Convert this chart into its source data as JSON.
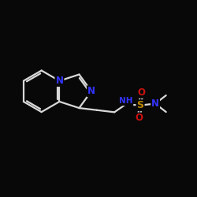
{
  "background_color": "#080808",
  "bond_color": "#d8d8d8",
  "bond_width": 1.6,
  "atom_colors": {
    "N": "#3333ff",
    "S": "#bb8800",
    "O": "#cc1111",
    "C": "#d8d8d8",
    "H": "#d8d8d8"
  },
  "xlim": [
    -4.0,
    5.5
  ],
  "ylim": [
    -3.0,
    3.0
  ],
  "figsize": [
    2.5,
    2.5
  ],
  "dpi": 100,
  "font_size": 8.5
}
